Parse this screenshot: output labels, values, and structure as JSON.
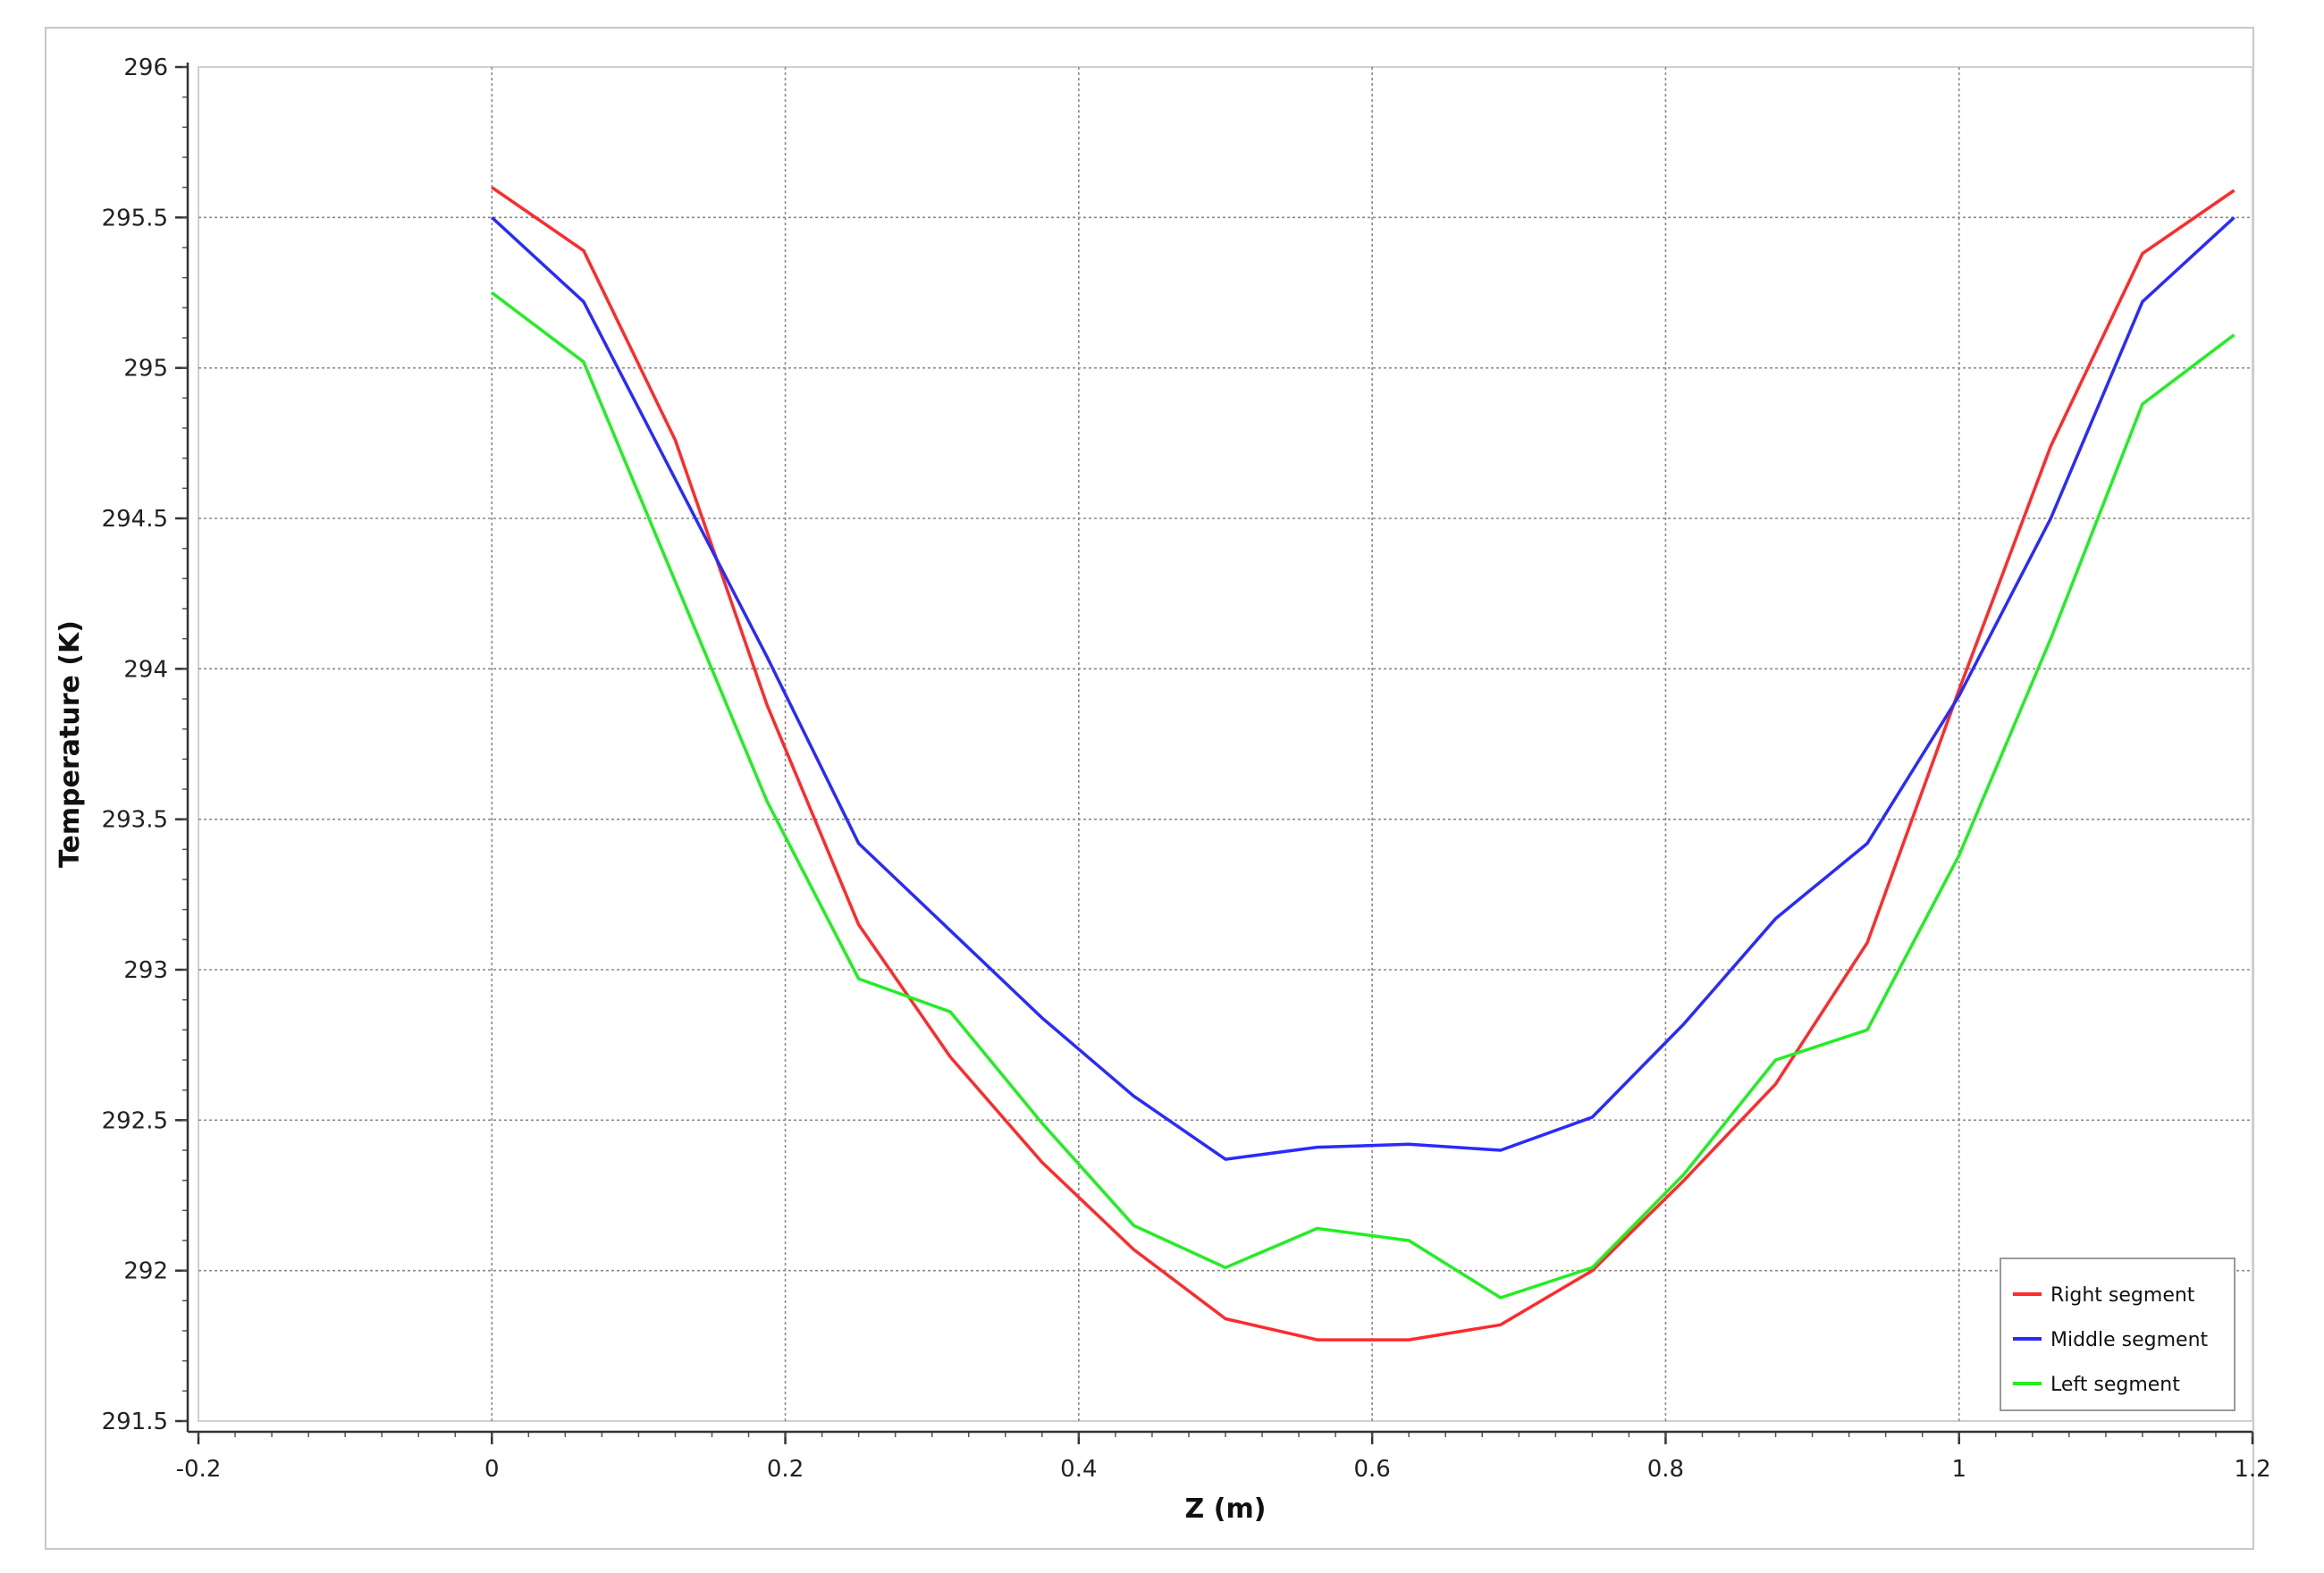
{
  "chart_data": {
    "type": "line",
    "title": "",
    "xlabel": "Z (m)",
    "ylabel": "Temperature (K)",
    "xlim": [
      -0.2,
      1.2
    ],
    "ylim": [
      291.5,
      296
    ],
    "x_ticks": [
      "-0.2",
      "0",
      "0.2",
      "0.4",
      "0.6",
      "0.8",
      "1",
      "1.2"
    ],
    "x_tick_values": [
      -0.2,
      0,
      0.2,
      0.4,
      0.6,
      0.8,
      1.0,
      1.2
    ],
    "y_ticks": [
      "291.5",
      "292",
      "292.5",
      "293",
      "293.5",
      "294",
      "294.5",
      "295",
      "295.5",
      "296"
    ],
    "y_tick_values": [
      291.5,
      292,
      292.5,
      293,
      293.5,
      294,
      294.5,
      295,
      295.5,
      296
    ],
    "grid": true,
    "legend_position": "bottom-right",
    "series": [
      {
        "name": "Right segment",
        "color": "#ff2a2a",
        "x": [
          0.0,
          0.0625,
          0.125,
          0.1875,
          0.25,
          0.3125,
          0.375,
          0.4375,
          0.5,
          0.5625,
          0.625,
          0.6875,
          0.75,
          0.8125,
          0.875,
          0.9375,
          1.0,
          1.0625,
          1.125,
          1.1875
        ],
        "y": [
          295.6,
          295.39,
          294.76,
          293.88,
          293.15,
          292.71,
          292.36,
          292.07,
          291.84,
          291.77,
          291.77,
          291.82,
          292.0,
          292.3,
          292.62,
          293.09,
          293.93,
          294.74,
          295.38,
          295.59
        ]
      },
      {
        "name": "Middle segment",
        "color": "#2a2aff",
        "x": [
          0.0,
          0.0625,
          0.125,
          0.1875,
          0.25,
          0.3125,
          0.375,
          0.4375,
          0.5,
          0.5625,
          0.625,
          0.6875,
          0.75,
          0.8125,
          0.875,
          0.9375,
          1.0,
          1.0625,
          1.125,
          1.1875
        ],
        "y": [
          295.5,
          295.22,
          294.63,
          294.04,
          293.42,
          293.13,
          292.84,
          292.58,
          292.37,
          292.41,
          292.42,
          292.4,
          292.51,
          292.82,
          293.17,
          293.42,
          293.91,
          294.5,
          295.22,
          295.5
        ]
      },
      {
        "name": "Left segment",
        "color": "#22ee22",
        "x": [
          0.0,
          0.0625,
          0.125,
          0.1875,
          0.25,
          0.3125,
          0.375,
          0.4375,
          0.5,
          0.5625,
          0.625,
          0.6875,
          0.75,
          0.8125,
          0.875,
          0.9375,
          1.0,
          1.0625,
          1.125,
          1.1875
        ],
        "y": [
          295.25,
          295.02,
          294.29,
          293.56,
          292.97,
          292.86,
          292.49,
          292.15,
          292.01,
          292.14,
          292.1,
          291.91,
          292.01,
          292.32,
          292.7,
          292.8,
          293.38,
          294.1,
          294.88,
          295.11
        ]
      }
    ]
  }
}
